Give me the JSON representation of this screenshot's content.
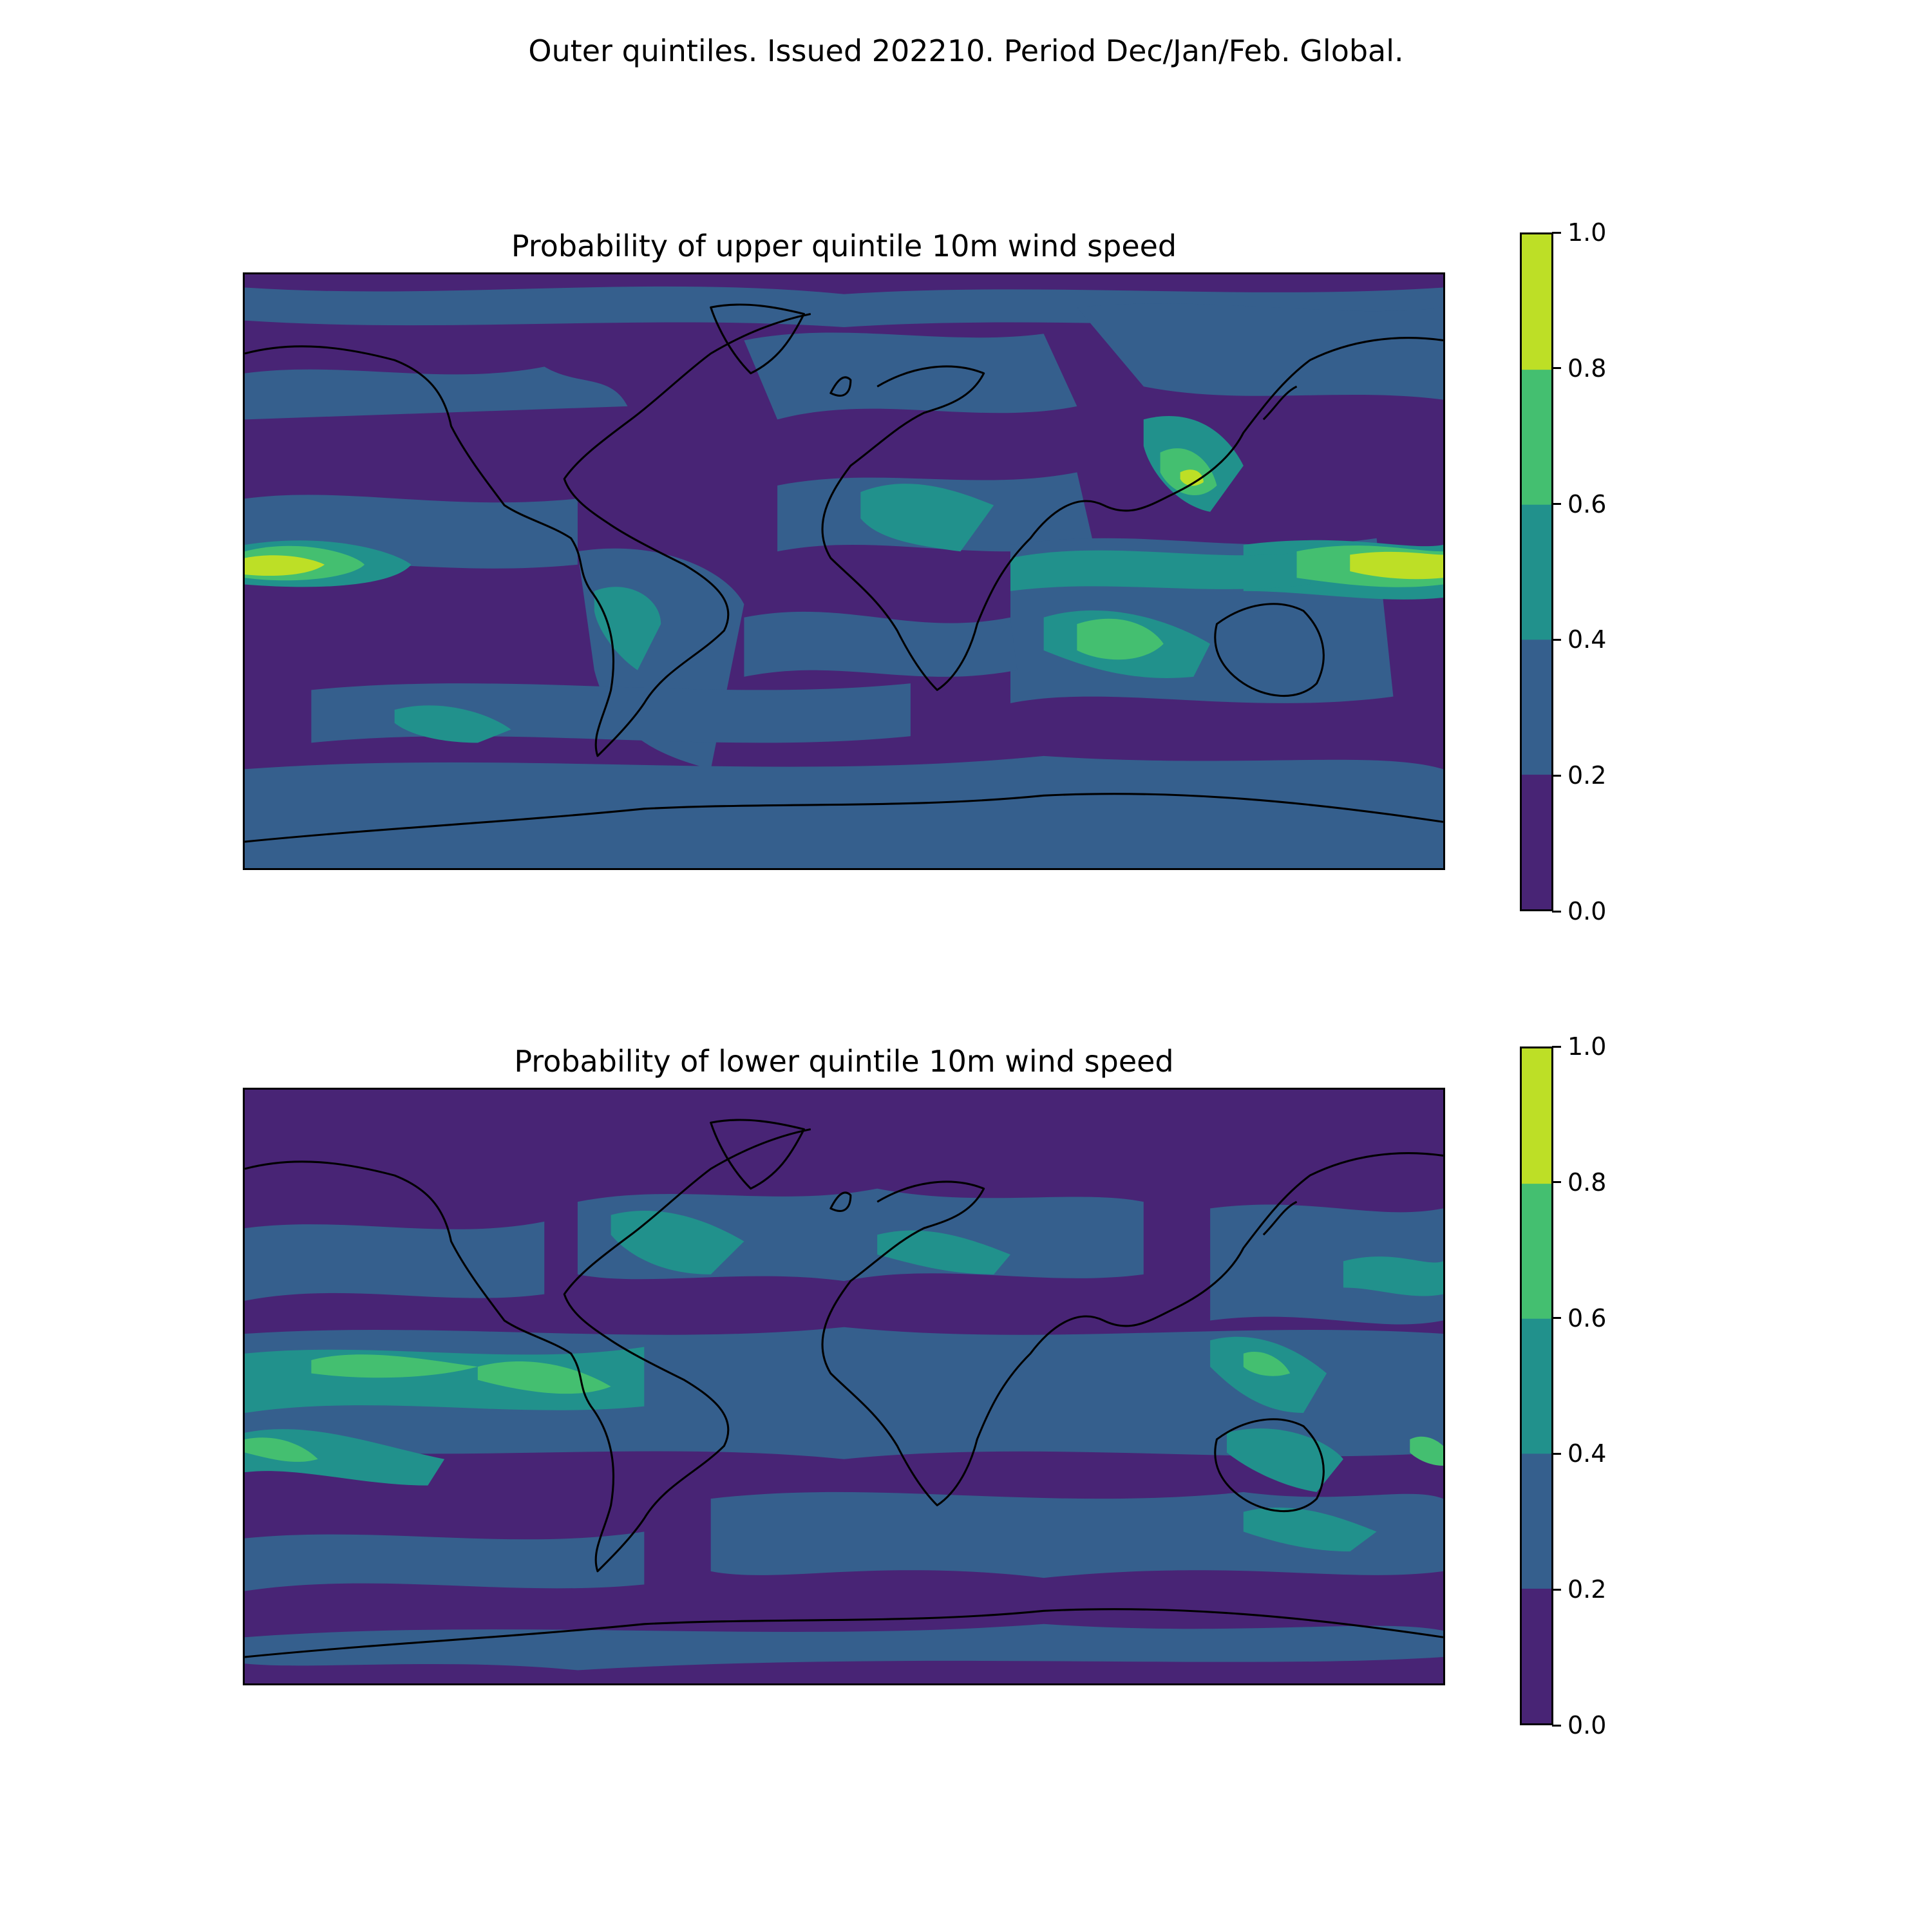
{
  "suptitle": "Outer quintiles. Issued 202210. Period Dec/Jan/Feb. Global.",
  "colors": {
    "level_0": "#482475",
    "level_1": "#355f8d",
    "level_2": "#21918c",
    "level_3": "#44bf70",
    "level_4": "#bddf26",
    "coastline": "#000000"
  },
  "colorbar": {
    "range": [
      0.0,
      1.0
    ],
    "boundaries": [
      0.0,
      0.2,
      0.4,
      0.6,
      0.8,
      1.0
    ],
    "tick_labels": [
      "0.0",
      "0.2",
      "0.4",
      "0.6",
      "0.8",
      "1.0"
    ]
  },
  "panels": [
    {
      "title": "Probability of upper quintile 10m wind speed",
      "variable": "upper-quintile"
    },
    {
      "title": "Probability of lower quintile 10m wind speed",
      "variable": "lower-quintile"
    }
  ]
}
